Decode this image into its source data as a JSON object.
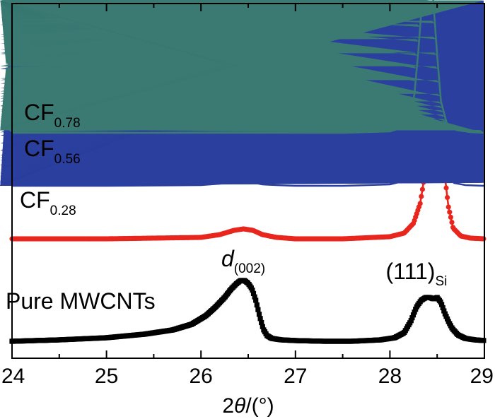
{
  "chart_data": {
    "type": "line",
    "xlabel_prefix": "2",
    "xlabel_symbol": "θ",
    "xlabel_suffix": "/(°)",
    "ylabel": "",
    "xlim": [
      24,
      29
    ],
    "x_ticks": [
      "24",
      "25",
      "26",
      "27",
      "28",
      "29"
    ],
    "y_ticks_visible": false,
    "grid": false,
    "series": [
      {
        "name": "Pure MWCNTs",
        "label_main": "Pure MWCNTs",
        "label_sub": "",
        "color": "#000000",
        "marker": "square",
        "baseline": 0.0,
        "x": [
          24.0,
          24.5,
          25.0,
          25.4,
          25.7,
          25.9,
          26.05,
          26.15,
          26.25,
          26.32,
          26.38,
          26.42,
          26.46,
          26.5,
          26.54,
          26.58,
          26.62,
          26.66,
          26.7,
          26.75,
          26.85,
          27.0,
          27.3,
          27.6,
          27.9,
          28.05,
          28.15,
          28.22,
          28.28,
          28.33,
          28.38,
          28.42,
          28.46,
          28.5,
          28.54,
          28.58,
          28.62,
          28.66,
          28.72,
          28.8,
          28.9,
          29.0
        ],
        "y": [
          0.0,
          0.02,
          0.05,
          0.1,
          0.16,
          0.24,
          0.36,
          0.48,
          0.62,
          0.74,
          0.82,
          0.86,
          0.86,
          0.82,
          0.74,
          0.58,
          0.36,
          0.17,
          0.08,
          0.04,
          0.02,
          0.01,
          0.0,
          0.0,
          0.02,
          0.05,
          0.12,
          0.28,
          0.48,
          0.58,
          0.62,
          0.62,
          0.6,
          0.62,
          0.55,
          0.4,
          0.28,
          0.18,
          0.09,
          0.04,
          0.02,
          0.01
        ]
      },
      {
        "name": "CF0.28",
        "label_main": "CF",
        "label_sub": "0.28",
        "color": "#e8261e",
        "marker": "circle",
        "baseline": 1.45,
        "x": [
          24.0,
          25.0,
          26.0,
          26.2,
          26.35,
          26.45,
          26.55,
          26.65,
          26.8,
          27.0,
          27.5,
          28.0,
          28.15,
          28.25,
          28.32,
          28.38,
          28.42,
          28.46,
          28.5,
          28.54,
          28.58,
          28.62,
          28.67,
          28.75,
          28.85,
          29.0
        ],
        "y": [
          0.0,
          0.0,
          0.02,
          0.06,
          0.12,
          0.14,
          0.12,
          0.06,
          0.02,
          0.0,
          0.0,
          0.03,
          0.08,
          0.22,
          0.5,
          1.0,
          1.38,
          1.55,
          1.55,
          1.35,
          0.9,
          0.45,
          0.15,
          0.04,
          0.01,
          0.0
        ]
      },
      {
        "name": "CF0.56",
        "label_main": "CF",
        "label_sub": "0.56",
        "color": "#2b3f9e",
        "marker": "triangle-up",
        "baseline": 2.2,
        "x": [
          24.0,
          25.0,
          26.0,
          26.2,
          26.35,
          26.42,
          26.5,
          26.65,
          26.8,
          27.0,
          27.5,
          28.0,
          28.12,
          28.22,
          28.28,
          28.33,
          28.37,
          28.41,
          28.45,
          28.48,
          28.52,
          28.56,
          28.6,
          28.68,
          28.8,
          29.0
        ],
        "y": [
          0.0,
          0.0,
          0.01,
          0.03,
          0.06,
          0.07,
          0.06,
          0.02,
          0.01,
          0.0,
          0.0,
          0.02,
          0.06,
          0.2,
          0.55,
          1.2,
          1.9,
          2.35,
          2.4,
          2.1,
          1.2,
          0.5,
          0.16,
          0.04,
          0.01,
          0.0
        ]
      },
      {
        "name": "CF0.78",
        "label_main": "CF",
        "label_sub": "0.78",
        "color": "#3a7a73",
        "marker": "triangle-down",
        "baseline": 2.95,
        "x": [
          24.0,
          25.0,
          26.0,
          26.5,
          27.0,
          27.5,
          28.0,
          28.1,
          28.2,
          28.26,
          28.3,
          28.34,
          28.37,
          28.4,
          28.43,
          28.46,
          28.5,
          28.54,
          28.6,
          28.7,
          28.85,
          29.0
        ],
        "y": [
          0.0,
          0.0,
          0.0,
          0.0,
          0.0,
          0.0,
          0.02,
          0.06,
          0.2,
          0.55,
          1.15,
          1.85,
          2.3,
          2.4,
          2.3,
          1.85,
          1.1,
          0.45,
          0.14,
          0.04,
          0.01,
          0.0
        ]
      }
    ],
    "annotations": [
      {
        "name": "d002-label",
        "main": "d",
        "sub": "(002)",
        "x_data": 26.44,
        "anchor": "peak"
      },
      {
        "name": "si111-label",
        "main": "(111)",
        "sub": "Si",
        "x_data": 28.42,
        "anchor": "peak"
      }
    ]
  }
}
